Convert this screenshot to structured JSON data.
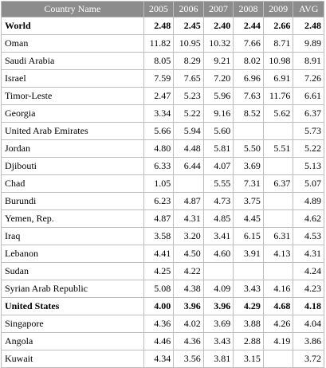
{
  "table": {
    "headers": [
      "Country Name",
      "2005",
      "2006",
      "2007",
      "2008",
      "2009",
      "AVG"
    ],
    "rows": [
      {
        "name": "World",
        "values": [
          "2.48",
          "2.45",
          "2.40",
          "2.44",
          "2.66",
          "2.48"
        ],
        "bold": true
      },
      {
        "name": "Oman",
        "values": [
          "11.82",
          "10.95",
          "10.32",
          "7.66",
          "8.71",
          "9.89"
        ],
        "bold": false
      },
      {
        "name": "Saudi Arabia",
        "values": [
          "8.05",
          "8.29",
          "9.21",
          "8.02",
          "10.98",
          "8.91"
        ],
        "bold": false
      },
      {
        "name": "Israel",
        "values": [
          "7.59",
          "7.65",
          "7.20",
          "6.96",
          "6.91",
          "7.26"
        ],
        "bold": false
      },
      {
        "name": "Timor-Leste",
        "values": [
          "2.47",
          "5.23",
          "5.96",
          "7.63",
          "11.76",
          "6.61"
        ],
        "bold": false
      },
      {
        "name": "Georgia",
        "values": [
          "3.34",
          "5.22",
          "9.16",
          "8.52",
          "5.62",
          "6.37"
        ],
        "bold": false
      },
      {
        "name": "United Arab Emirates",
        "values": [
          "5.66",
          "5.94",
          "5.60",
          "",
          "",
          "5.73"
        ],
        "bold": false
      },
      {
        "name": "Jordan",
        "values": [
          "4.80",
          "4.48",
          "5.81",
          "5.50",
          "5.51",
          "5.22"
        ],
        "bold": false
      },
      {
        "name": "Djibouti",
        "values": [
          "6.33",
          "6.44",
          "4.07",
          "3.69",
          "",
          "5.13"
        ],
        "bold": false
      },
      {
        "name": "Chad",
        "values": [
          "1.05",
          "",
          "5.55",
          "7.31",
          "6.37",
          "5.07"
        ],
        "bold": false
      },
      {
        "name": "Burundi",
        "values": [
          "6.23",
          "4.87",
          "4.73",
          "3.75",
          "",
          "4.89"
        ],
        "bold": false
      },
      {
        "name": "Yemen, Rep.",
        "values": [
          "4.87",
          "4.31",
          "4.85",
          "4.45",
          "",
          "4.62"
        ],
        "bold": false
      },
      {
        "name": "Iraq",
        "values": [
          "3.58",
          "3.20",
          "3.41",
          "6.15",
          "6.31",
          "4.53"
        ],
        "bold": false
      },
      {
        "name": "Lebanon",
        "values": [
          "4.41",
          "4.50",
          "4.60",
          "3.91",
          "4.13",
          "4.31"
        ],
        "bold": false
      },
      {
        "name": "Sudan",
        "values": [
          "4.25",
          "4.22",
          "",
          "",
          "",
          "4.24"
        ],
        "bold": false
      },
      {
        "name": "Syrian Arab Republic",
        "values": [
          "5.08",
          "4.38",
          "4.09",
          "3.43",
          "4.16",
          "4.23"
        ],
        "bold": false
      },
      {
        "name": "United States",
        "values": [
          "4.00",
          "3.96",
          "3.96",
          "4.29",
          "4.68",
          "4.18"
        ],
        "bold": true
      },
      {
        "name": "Singapore",
        "values": [
          "4.36",
          "4.02",
          "3.69",
          "3.88",
          "4.26",
          "4.04"
        ],
        "bold": false
      },
      {
        "name": "Angola",
        "values": [
          "4.46",
          "4.36",
          "3.43",
          "2.88",
          "4.19",
          "3.86"
        ],
        "bold": false
      },
      {
        "name": "Kuwait",
        "values": [
          "4.34",
          "3.56",
          "3.81",
          "3.15",
          "",
          "3.72"
        ],
        "bold": false
      }
    ]
  },
  "colors": {
    "header_bg": "#8c8c8c",
    "header_text": "#ffffff",
    "border": "#bdbdbd"
  }
}
